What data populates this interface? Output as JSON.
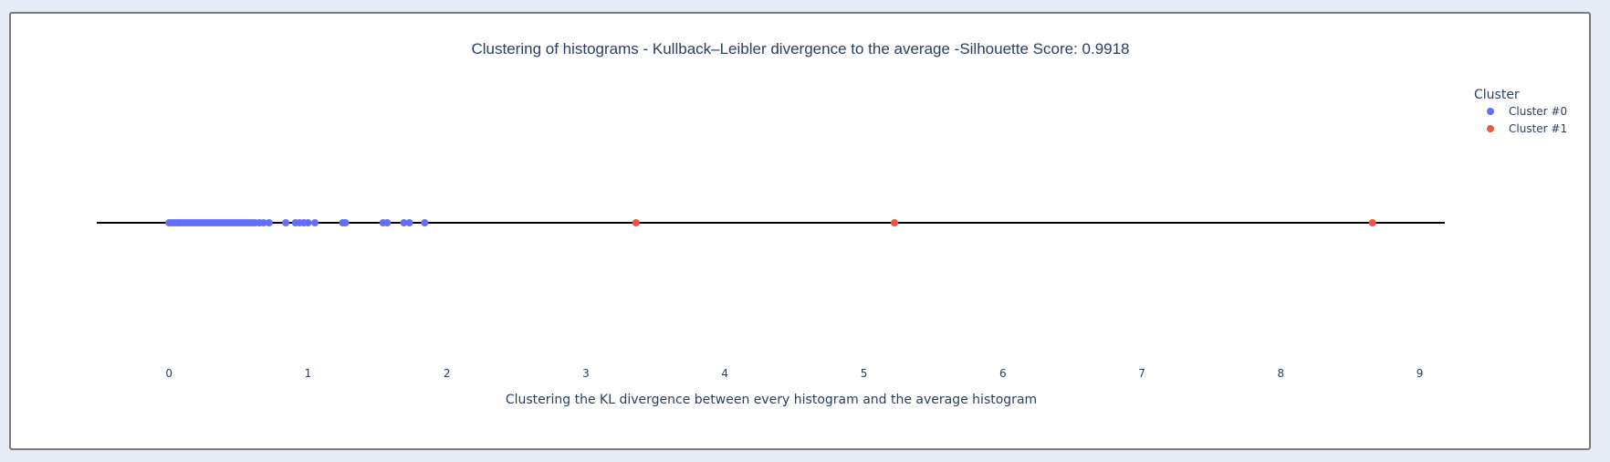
{
  "chart_data": {
    "type": "scatter",
    "title": "Clustering of histograms - Kullback–Leibler divergence to the average -Silhouette Score: 0.9918",
    "xlabel": "Clustering the KL divergence between every histogram and the average histogram",
    "ylabel": "",
    "xlim": [
      -0.52,
      9.18
    ],
    "x_ticks": [
      0,
      1,
      2,
      3,
      4,
      5,
      6,
      7,
      8,
      9
    ],
    "grid": false,
    "legend": {
      "title": "Cluster",
      "position": "top-right"
    },
    "series": [
      {
        "name": "Cluster #0",
        "color": "#636efa",
        "x": [
          0.0,
          0.02,
          0.04,
          0.06,
          0.08,
          0.1,
          0.12,
          0.14,
          0.16,
          0.18,
          0.2,
          0.22,
          0.24,
          0.26,
          0.28,
          0.3,
          0.32,
          0.34,
          0.36,
          0.38,
          0.4,
          0.42,
          0.44,
          0.46,
          0.48,
          0.5,
          0.52,
          0.54,
          0.56,
          0.58,
          0.6,
          0.62,
          0.65,
          0.68,
          0.72,
          0.84,
          0.91,
          0.94,
          0.97,
          1.0,
          1.05,
          1.25,
          1.27,
          1.54,
          1.57,
          1.69,
          1.73,
          1.84
        ]
      },
      {
        "name": "Cluster #1",
        "color": "#ef553b",
        "x": [
          3.36,
          5.22,
          8.66
        ]
      }
    ]
  }
}
